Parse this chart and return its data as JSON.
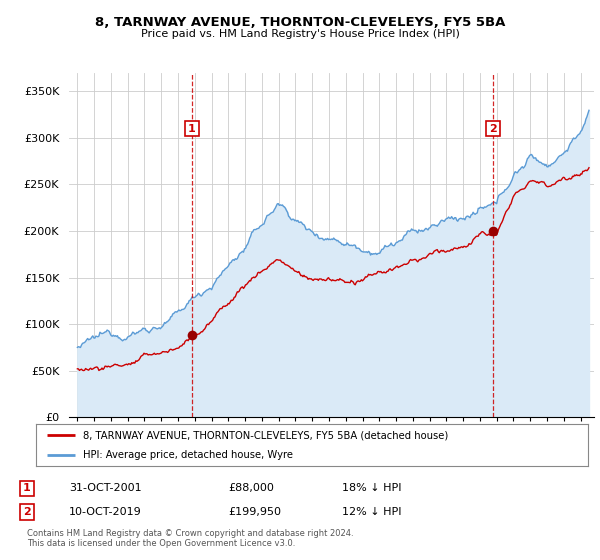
{
  "title": "8, TARNWAY AVENUE, THORNTON-CLEVELEYS, FY5 5BA",
  "subtitle": "Price paid vs. HM Land Registry's House Price Index (HPI)",
  "legend_line1": "8, TARNWAY AVENUE, THORNTON-CLEVELEYS, FY5 5BA (detached house)",
  "legend_line2": "HPI: Average price, detached house, Wyre",
  "transaction1_date": "31-OCT-2001",
  "transaction1_price": "£88,000",
  "transaction1_hpi": "18% ↓ HPI",
  "transaction2_date": "10-OCT-2019",
  "transaction2_price": "£199,950",
  "transaction2_hpi": "12% ↓ HPI",
  "footer": "Contains HM Land Registry data © Crown copyright and database right 2024.\nThis data is licensed under the Open Government Licence v3.0.",
  "vline1_x": 2001.83,
  "vline2_x": 2019.78,
  "sale1_x": 2001.83,
  "sale1_y": 88000,
  "sale2_x": 2019.78,
  "sale2_y": 199950,
  "hpi_color": "#5b9bd5",
  "hpi_fill_color": "#daeaf7",
  "price_color": "#cc0000",
  "vline_color": "#cc0000",
  "sale_marker_color": "#990000",
  "label1_color": "#cc0000",
  "label2_color": "#cc0000",
  "background_color": "#ffffff",
  "grid_color": "#cccccc",
  "ylim": [
    0,
    370000
  ],
  "xlim": [
    1994.5,
    2025.8
  ],
  "yticks": [
    0,
    50000,
    100000,
    150000,
    200000,
    250000,
    300000,
    350000
  ],
  "ytick_labels": [
    "£0",
    "£50K",
    "£100K",
    "£150K",
    "£200K",
    "£250K",
    "£300K",
    "£350K"
  ],
  "xticks": [
    1995,
    1996,
    1997,
    1998,
    1999,
    2000,
    2001,
    2002,
    2003,
    2004,
    2005,
    2006,
    2007,
    2008,
    2009,
    2010,
    2011,
    2012,
    2013,
    2014,
    2015,
    2016,
    2017,
    2018,
    2019,
    2020,
    2021,
    2022,
    2023,
    2024,
    2025
  ]
}
